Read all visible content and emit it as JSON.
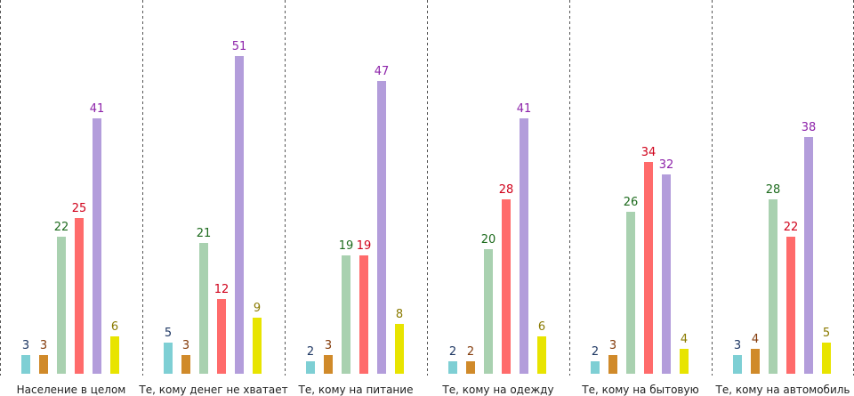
{
  "chart_data": {
    "type": "bar",
    "categories": [
      "Население в целом",
      "Те, кому денег не хватает",
      "Те, кому на питание",
      "Те, кому на одежду",
      "Те, кому на бытовую",
      "Те, кому на автомобиль"
    ],
    "series": [
      {
        "color": "#7ecfd4",
        "label_color": "#1f3864",
        "values": [
          3,
          5,
          2,
          2,
          2,
          3
        ]
      },
      {
        "color": "#d08a2a",
        "label_color": "#843c0c",
        "values": [
          3,
          3,
          3,
          2,
          3,
          4
        ]
      },
      {
        "color": "#a9d1b0",
        "label_color": "#1e6b1e",
        "values": [
          22,
          21,
          19,
          20,
          26,
          28
        ]
      },
      {
        "color": "#ff6b6b",
        "label_color": "#d0021b",
        "values": [
          25,
          12,
          19,
          28,
          34,
          22
        ]
      },
      {
        "color": "#b39ddb",
        "label_color": "#8e24aa",
        "values": [
          41,
          51,
          47,
          41,
          32,
          38
        ]
      },
      {
        "color": "#e8e400",
        "label_color": "#8a7a00",
        "values": [
          6,
          9,
          8,
          6,
          4,
          5
        ]
      }
    ],
    "ylim": [
      0,
      51
    ],
    "grid": false,
    "legend": "none",
    "separators": "dashed"
  }
}
